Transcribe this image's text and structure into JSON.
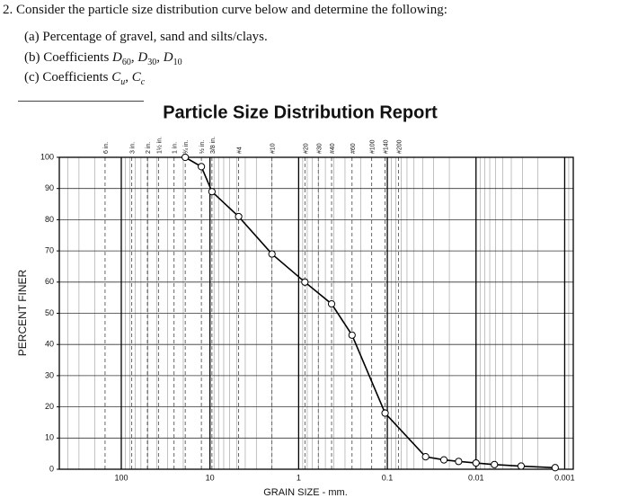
{
  "question": {
    "number": "2.",
    "prompt": "Consider the particle size distribution curve below and determine the following:",
    "items": [
      {
        "label": "(a)",
        "text": "Percentage of gravel, sand and silts/clays.",
        "terms": []
      },
      {
        "label": "(b)",
        "text": "Coefficients",
        "terms": [
          {
            "sym": "D",
            "sub": "60"
          },
          {
            "sym": "D",
            "sub": "30"
          },
          {
            "sym": "D",
            "sub": "10"
          }
        ]
      },
      {
        "label": "(c)",
        "text": "Coefficients",
        "terms": [
          {
            "sym": "C",
            "sub": "u"
          },
          {
            "sym": "C",
            "sub": "c"
          }
        ]
      }
    ]
  },
  "chart_data": {
    "type": "line",
    "title": "Particle Size Distribution Report",
    "x_label": "GRAIN SIZE - mm.",
    "y_label": "PERCENT FINER",
    "x": [
      19.0,
      12.5,
      9.5,
      4.75,
      2.0,
      0.85,
      0.425,
      0.25,
      0.106,
      0.037,
      0.023,
      0.0157,
      0.01,
      0.0062,
      0.0031,
      0.00128
    ],
    "values": [
      100,
      97,
      89,
      81,
      69,
      60,
      53,
      43,
      18,
      4,
      3,
      2.5,
      2,
      1.5,
      1,
      0.5
    ],
    "color": "#000000",
    "xlim": [
      500,
      0.0008
    ],
    "ylim": [
      0,
      100
    ],
    "log_x": true,
    "grid": true,
    "xticks": [
      100,
      10,
      1,
      0.1,
      0.01,
      0.001
    ],
    "yticks": [
      0,
      10,
      20,
      30,
      40,
      50,
      60,
      70,
      80,
      90,
      100
    ],
    "sieve_ticks": [
      {
        "value": 152.4,
        "label": "6 in."
      },
      {
        "value": 76.2,
        "label": "3 in."
      },
      {
        "value": 50.8,
        "label": "2 in."
      },
      {
        "value": 38.1,
        "label": "1½ in."
      },
      {
        "value": 25.4,
        "label": "1 in."
      },
      {
        "value": 19.0,
        "label": "¾ in."
      },
      {
        "value": 12.5,
        "label": "½ in."
      },
      {
        "value": 9.5,
        "label": "3/8 in."
      },
      {
        "value": 4.75,
        "label": "#4"
      },
      {
        "value": 2.0,
        "label": "#10"
      },
      {
        "value": 0.85,
        "label": "#20"
      },
      {
        "value": 0.6,
        "label": "#30"
      },
      {
        "value": 0.425,
        "label": "#40"
      },
      {
        "value": 0.25,
        "label": "#60"
      },
      {
        "value": 0.15,
        "label": "#100"
      },
      {
        "value": 0.106,
        "label": "#140"
      },
      {
        "value": 0.075,
        "label": "#200"
      }
    ]
  }
}
